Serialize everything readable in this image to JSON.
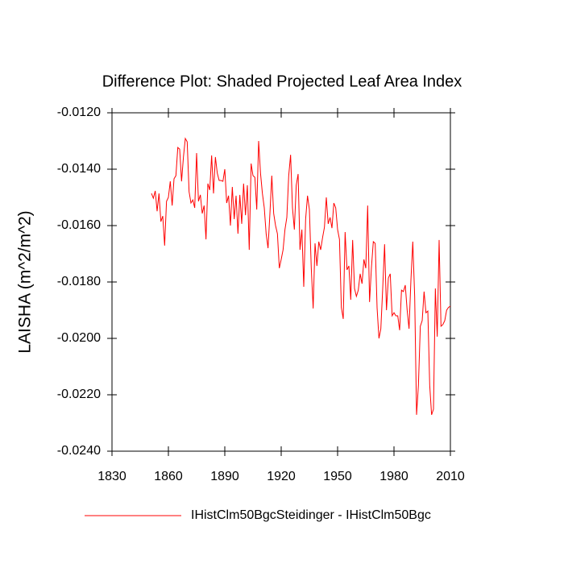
{
  "chart_data": {
    "type": "line",
    "title": "Difference Plot: Shaded Projected Leaf Area Index",
    "y_label": "LAISHA  (m^2/m^2)",
    "x": [
      1851,
      1852,
      1853,
      1854,
      1855,
      1856,
      1857,
      1858,
      1859,
      1860,
      1861,
      1862,
      1863,
      1864,
      1865,
      1866,
      1867,
      1868,
      1869,
      1870,
      1871,
      1872,
      1873,
      1874,
      1875,
      1876,
      1877,
      1878,
      1879,
      1880,
      1881,
      1882,
      1883,
      1884,
      1885,
      1886,
      1887,
      1888,
      1889,
      1890,
      1891,
      1892,
      1893,
      1894,
      1895,
      1896,
      1897,
      1898,
      1899,
      1900,
      1901,
      1902,
      1903,
      1904,
      1905,
      1906,
      1907,
      1908,
      1909,
      1910,
      1911,
      1912,
      1913,
      1914,
      1915,
      1916,
      1917,
      1918,
      1919,
      1920,
      1921,
      1922,
      1923,
      1924,
      1925,
      1926,
      1927,
      1928,
      1929,
      1930,
      1931,
      1932,
      1933,
      1934,
      1935,
      1936,
      1937,
      1938,
      1939,
      1940,
      1941,
      1942,
      1943,
      1944,
      1945,
      1946,
      1947,
      1948,
      1949,
      1950,
      1951,
      1952,
      1953,
      1954,
      1955,
      1956,
      1957,
      1958,
      1959,
      1960,
      1961,
      1962,
      1963,
      1964,
      1965,
      1966,
      1967,
      1968,
      1969,
      1970,
      1971,
      1972,
      1973,
      1974,
      1975,
      1976,
      1977,
      1978,
      1979,
      1980,
      1981,
      1982,
      1983,
      1984,
      1985,
      1986,
      1987,
      1988,
      1989,
      1990,
      1991,
      1992,
      1993,
      1994,
      1995,
      1996,
      1997,
      1998,
      1999,
      2000,
      2001,
      2002,
      2003,
      2004,
      2005,
      2006,
      2007,
      2008,
      2009,
      2010
    ],
    "series": [
      {
        "name": "IHistClm50BgcSteidinger - IHistClm50Bgc",
        "color": "#ff0000",
        "values": [
          -0.01486,
          -0.01503,
          -0.01477,
          -0.01549,
          -0.01486,
          -0.01586,
          -0.01566,
          -0.01671,
          -0.01514,
          -0.015,
          -0.01443,
          -0.01529,
          -0.01434,
          -0.01423,
          -0.01323,
          -0.01329,
          -0.01443,
          -0.01357,
          -0.01291,
          -0.01303,
          -0.0148,
          -0.0152,
          -0.01509,
          -0.01537,
          -0.01343,
          -0.01514,
          -0.01491,
          -0.01557,
          -0.01529,
          -0.01649,
          -0.01451,
          -0.01474,
          -0.01351,
          -0.01486,
          -0.01357,
          -0.01414,
          -0.0144,
          -0.0144,
          -0.01443,
          -0.014,
          -0.0152,
          -0.01494,
          -0.016,
          -0.01463,
          -0.01577,
          -0.01494,
          -0.01629,
          -0.01491,
          -0.01594,
          -0.01451,
          -0.01563,
          -0.01457,
          -0.01686,
          -0.0138,
          -0.01423,
          -0.01429,
          -0.01543,
          -0.013,
          -0.01414,
          -0.01486,
          -0.01537,
          -0.01629,
          -0.0168,
          -0.01557,
          -0.01423,
          -0.01557,
          -0.016,
          -0.01629,
          -0.01751,
          -0.0172,
          -0.01686,
          -0.01614,
          -0.01571,
          -0.01423,
          -0.01349,
          -0.01537,
          -0.01614,
          -0.01457,
          -0.01417,
          -0.01686,
          -0.01614,
          -0.01817,
          -0.01577,
          -0.01494,
          -0.01543,
          -0.01751,
          -0.01894,
          -0.01663,
          -0.01743,
          -0.01657,
          -0.01686,
          -0.01643,
          -0.01606,
          -0.015,
          -0.01594,
          -0.01571,
          -0.01609,
          -0.0152,
          -0.01537,
          -0.01614,
          -0.01649,
          -0.01891,
          -0.01931,
          -0.01623,
          -0.01757,
          -0.01743,
          -0.01863,
          -0.01651,
          -0.01823,
          -0.01851,
          -0.01829,
          -0.01771,
          -0.01806,
          -0.0172,
          -0.01751,
          -0.01529,
          -0.01871,
          -0.01749,
          -0.01657,
          -0.01663,
          -0.01891,
          -0.02,
          -0.01966,
          -0.01823,
          -0.01666,
          -0.019,
          -0.01786,
          -0.01771,
          -0.0192,
          -0.01909,
          -0.0192,
          -0.0192,
          -0.01971,
          -0.01829,
          -0.01834,
          -0.01811,
          -0.019,
          -0.01966,
          -0.01794,
          -0.01657,
          -0.01851,
          -0.02271,
          -0.02166,
          -0.01957,
          -0.01937,
          -0.01834,
          -0.01909,
          -0.01903,
          -0.02166,
          -0.02271,
          -0.02251,
          -0.01823,
          -0.01994,
          -0.01651,
          -0.01957,
          -0.01951,
          -0.01937,
          -0.019,
          -0.0189,
          -0.01886
        ]
      }
    ],
    "xlim": [
      1830,
      2010
    ],
    "xticks": [
      1830,
      1860,
      1890,
      1920,
      1950,
      1980,
      2010
    ],
    "ylim": [
      -0.024,
      -0.012
    ],
    "yticks": [
      {
        "value": -0.024,
        "label": "-0.0240"
      },
      {
        "value": -0.022,
        "label": "-0.0220"
      },
      {
        "value": -0.02,
        "label": "-0.0200"
      },
      {
        "value": -0.018,
        "label": "-0.0180"
      },
      {
        "value": -0.016,
        "label": "-0.0160"
      },
      {
        "value": -0.014,
        "label": "-0.0140"
      },
      {
        "value": -0.012,
        "label": "-0.0120"
      }
    ],
    "grid": false
  }
}
